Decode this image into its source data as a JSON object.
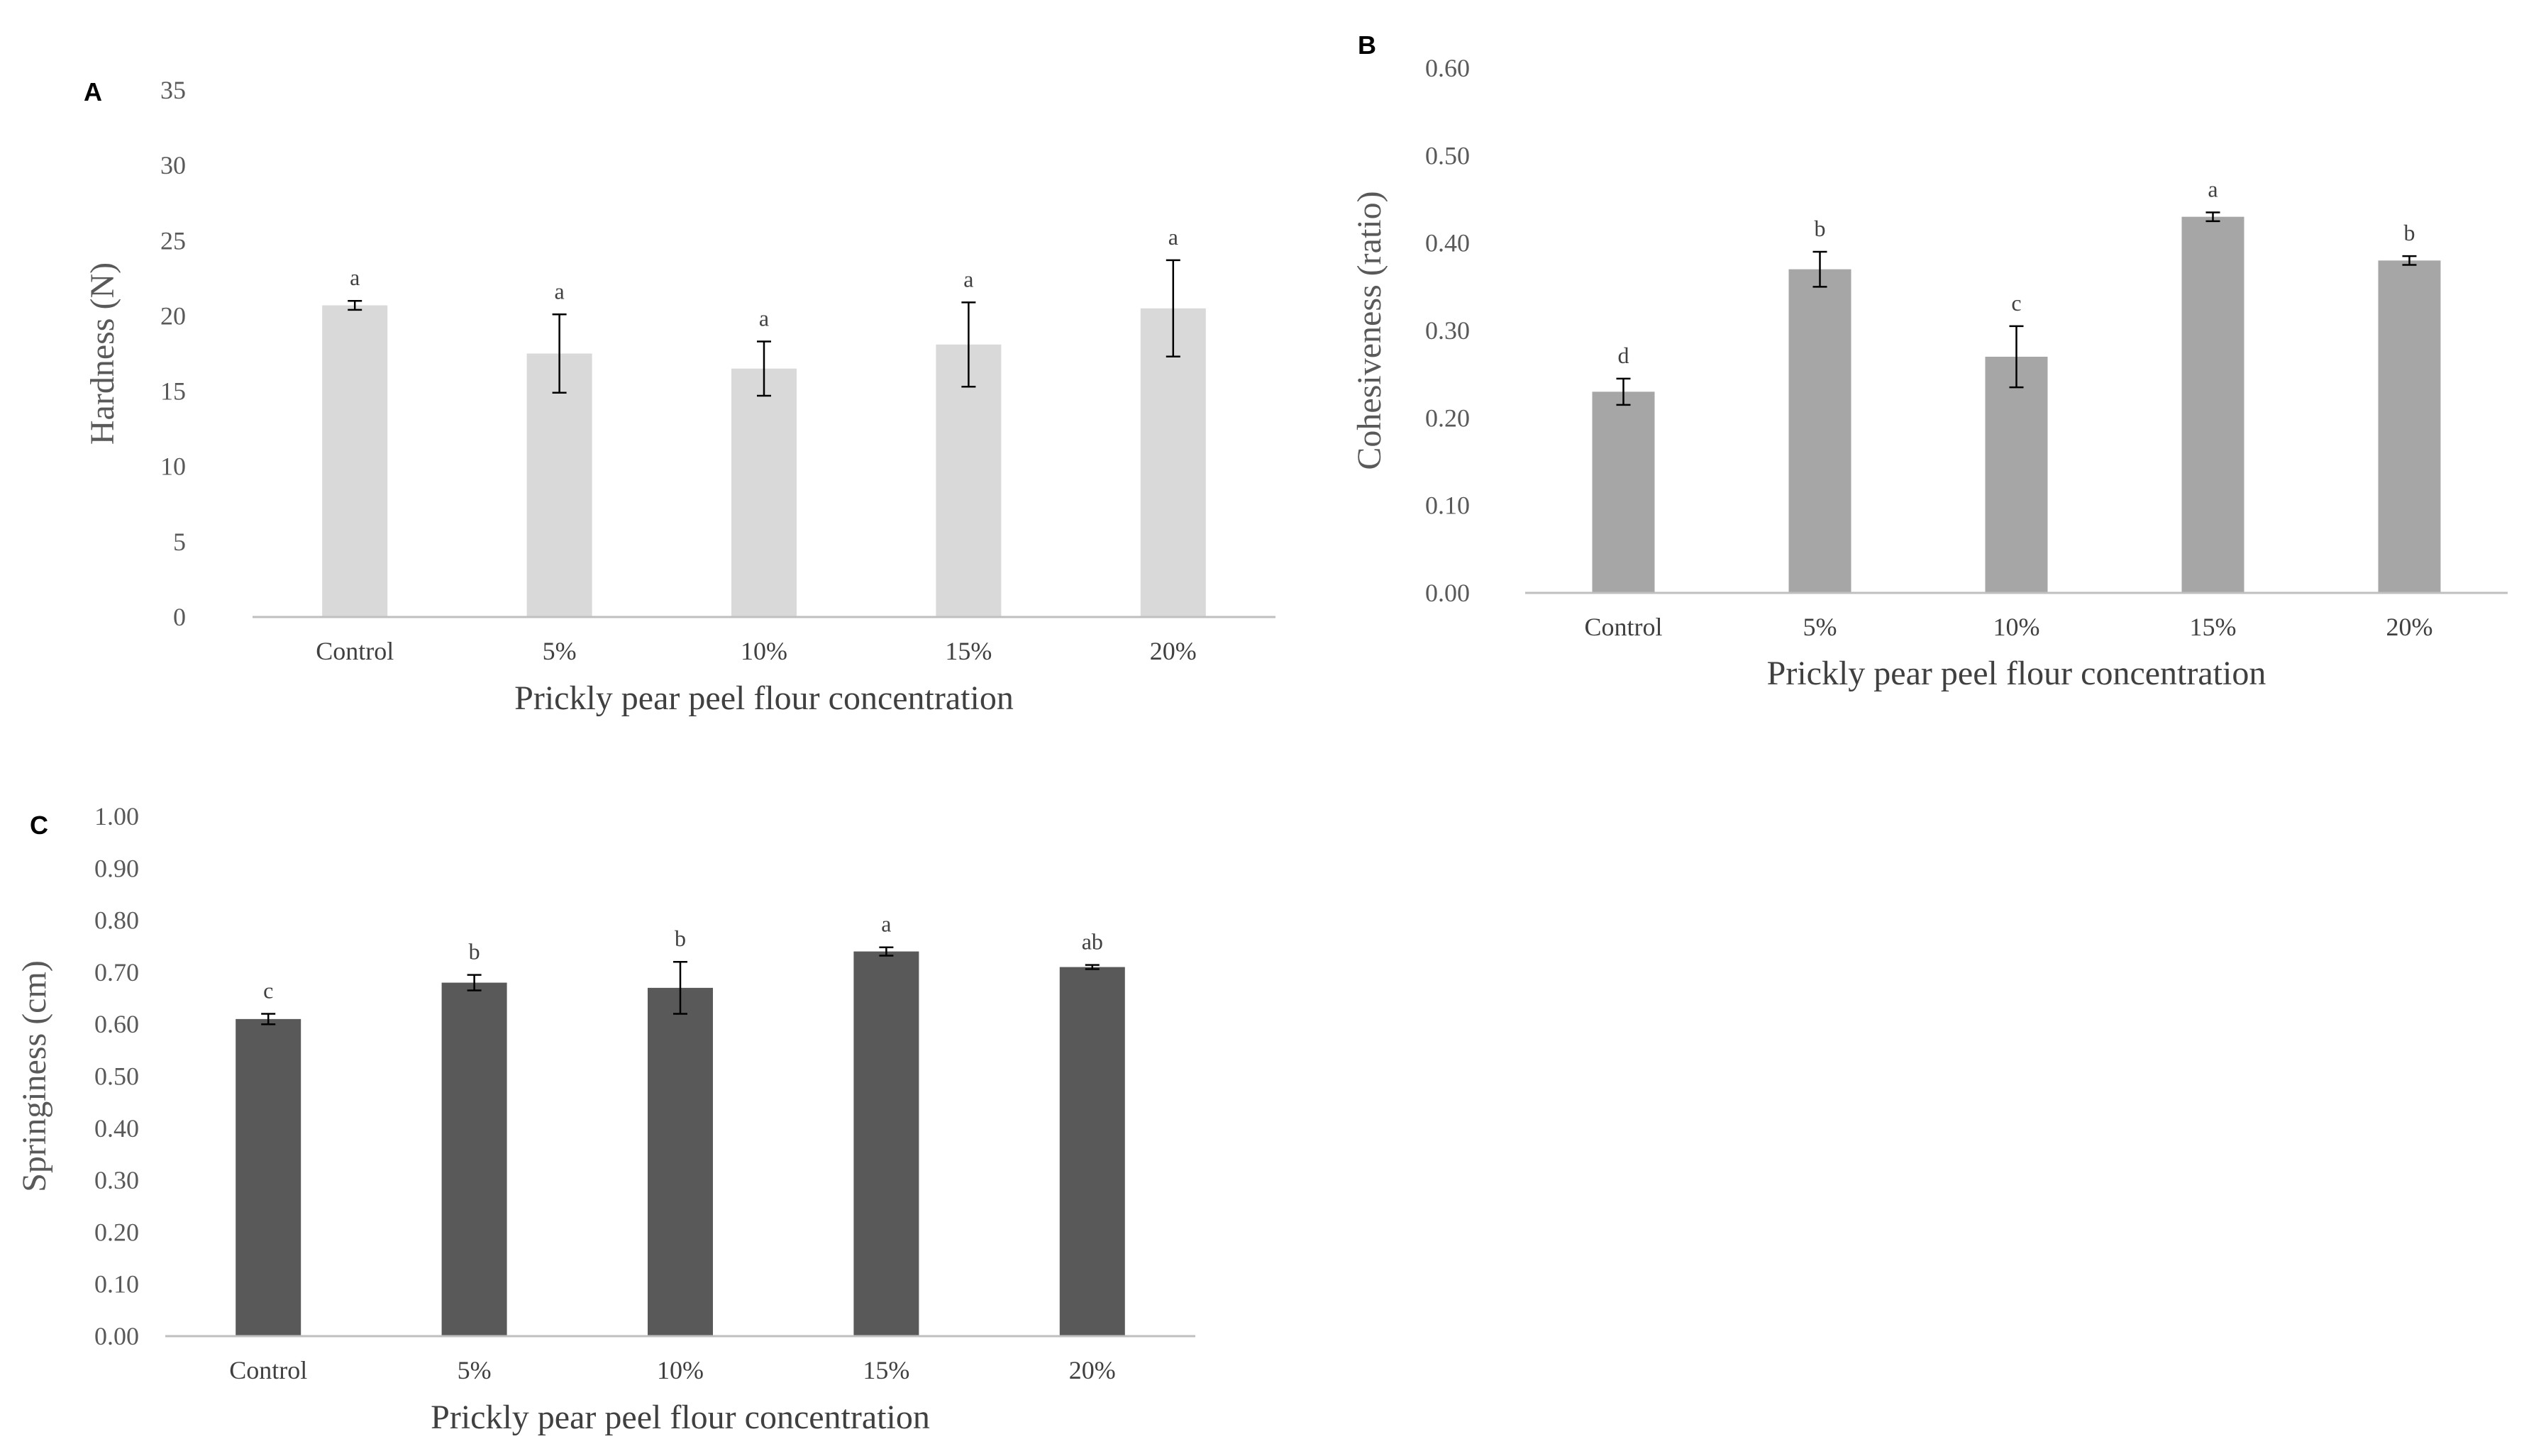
{
  "chart_data": [
    {
      "panel": "A",
      "type": "bar",
      "categories": [
        "Control",
        "5%",
        "10%",
        "15%",
        "20%"
      ],
      "values": [
        20.7,
        17.5,
        16.5,
        18.1,
        20.5
      ],
      "errors": [
        0.3,
        2.6,
        1.8,
        2.8,
        3.2
      ],
      "letters": [
        "a",
        "a",
        "a",
        "a",
        "a"
      ],
      "xlabel": "Prickly pear peel flour concentration",
      "ylabel": "Hardness (N)",
      "ylim": [
        0,
        35
      ],
      "yticks": [
        "0",
        "5",
        "10",
        "15",
        "20",
        "25",
        "30",
        "35"
      ],
      "bar_color": "#d9d9d9",
      "grid": false
    },
    {
      "panel": "B",
      "type": "bar",
      "categories": [
        "Control",
        "5%",
        "10%",
        "15%",
        "20%"
      ],
      "values": [
        0.23,
        0.37,
        0.27,
        0.43,
        0.38
      ],
      "errors": [
        0.015,
        0.02,
        0.035,
        0.005,
        0.005
      ],
      "letters": [
        "d",
        "b",
        "c",
        "a",
        "b"
      ],
      "xlabel": "Prickly pear peel flour concentration",
      "ylabel": "Cohesiveness (ratio)",
      "ylim": [
        0,
        0.6
      ],
      "yticks": [
        "0.00",
        "0.10",
        "0.20",
        "0.30",
        "0.40",
        "0.50",
        "0.60"
      ],
      "bar_color": "#a6a6a6",
      "grid": false
    },
    {
      "panel": "C",
      "type": "bar",
      "categories": [
        "Control",
        "5%",
        "10%",
        "15%",
        "20%"
      ],
      "values": [
        0.61,
        0.68,
        0.67,
        0.74,
        0.71
      ],
      "errors": [
        0.01,
        0.015,
        0.05,
        0.008,
        0.004
      ],
      "letters": [
        "c",
        "b",
        "b",
        "a",
        "ab"
      ],
      "xlabel": "Prickly pear peel flour concentration",
      "ylabel": "Springiness (cm)",
      "ylim": [
        0,
        1.0
      ],
      "yticks": [
        "0.00",
        "0.10",
        "0.20",
        "0.30",
        "0.40",
        "0.50",
        "0.60",
        "0.70",
        "0.80",
        "0.90",
        "1.00"
      ],
      "bar_color": "#595959",
      "grid": false
    }
  ]
}
